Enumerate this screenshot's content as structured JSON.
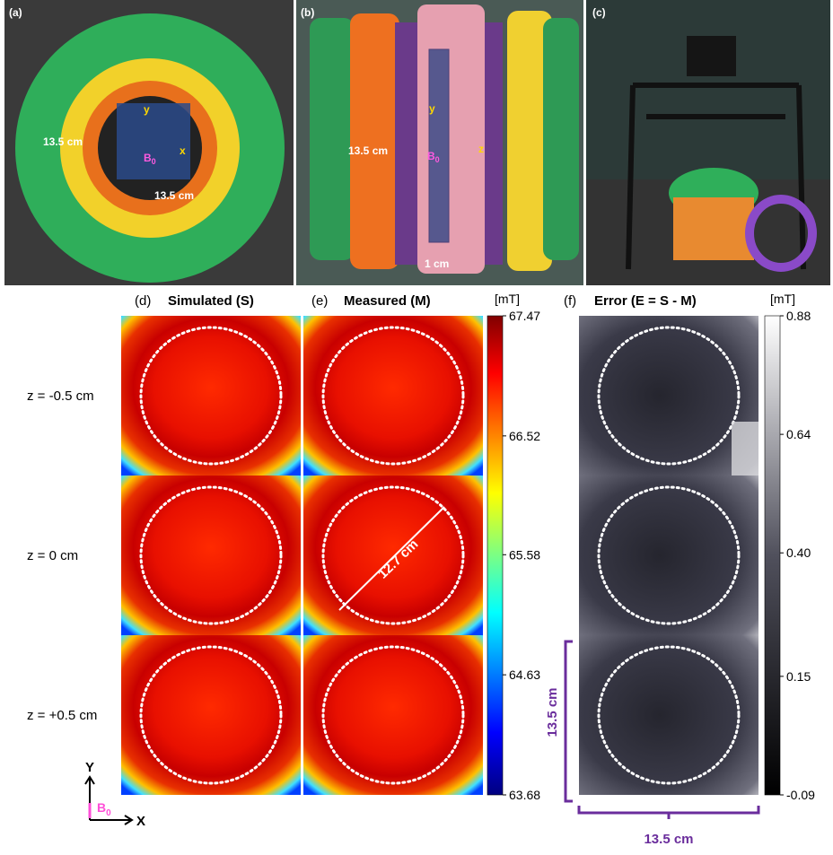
{
  "photo_a": {
    "label": "(a)",
    "height_label": "13.5 cm",
    "width_label": "13.5 cm",
    "axis_y": "y",
    "axis_x": "x",
    "field": "B",
    "field_sub": "0"
  },
  "photo_b": {
    "label": "(b)",
    "height_label": "13.5 cm",
    "thickness_label": "1 cm",
    "axis_y": "y",
    "axis_z": "z",
    "field": "B",
    "field_sub": "0"
  },
  "photo_c": {
    "label": "(c)"
  },
  "panel_d": {
    "label": "(d)",
    "title": "Simulated (S)"
  },
  "panel_e": {
    "label": "(e)",
    "title": "Measured (M)",
    "diameter_label": "12.7 cm"
  },
  "panel_f": {
    "label": "(f)",
    "title": "Error (E = S - M)",
    "height_label": "13.5 cm",
    "width_label": "13.5 cm"
  },
  "rows": [
    "z = -0.5 cm",
    "z = 0 cm",
    "z = +0.5 cm"
  ],
  "colorbar_field": {
    "unit": "[mT]",
    "lim": [
      63.68,
      67.47
    ],
    "ticks": [
      67.47,
      66.52,
      65.58,
      64.63,
      63.68
    ]
  },
  "colorbar_error": {
    "unit": "[mT]",
    "lim": [
      -0.09,
      0.88
    ],
    "ticks": [
      0.88,
      0.64,
      {
        "value": 0.4,
        "label": "0.40"
      },
      0.15,
      -0.09
    ]
  },
  "axes_legend": {
    "y": "Y",
    "x": "X",
    "field": "B",
    "field_sub": "0"
  }
}
